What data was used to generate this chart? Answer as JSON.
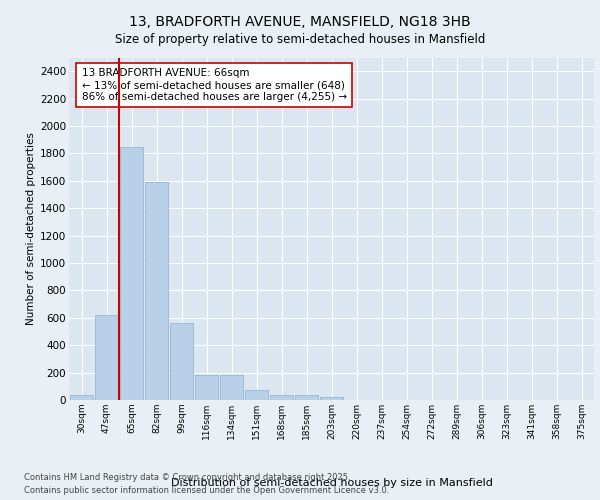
{
  "title1": "13, BRADFORTH AVENUE, MANSFIELD, NG18 3HB",
  "title2": "Size of property relative to semi-detached houses in Mansfield",
  "xlabel": "Distribution of semi-detached houses by size in Mansfield",
  "ylabel": "Number of semi-detached properties",
  "categories": [
    "30sqm",
    "47sqm",
    "65sqm",
    "82sqm",
    "99sqm",
    "116sqm",
    "134sqm",
    "151sqm",
    "168sqm",
    "185sqm",
    "203sqm",
    "220sqm",
    "237sqm",
    "254sqm",
    "272sqm",
    "289sqm",
    "306sqm",
    "323sqm",
    "341sqm",
    "358sqm",
    "375sqm"
  ],
  "values": [
    40,
    620,
    1850,
    1590,
    560,
    185,
    185,
    75,
    40,
    40,
    20,
    0,
    0,
    0,
    0,
    0,
    0,
    0,
    0,
    0,
    0
  ],
  "bar_color": "#b8d0e8",
  "bar_edge_color": "#8ab0d0",
  "highlight_line_color": "#cc0000",
  "highlight_bar_index": 2,
  "annotation_title": "13 BRADFORTH AVENUE: 66sqm",
  "annotation_line1": "← 13% of semi-detached houses are smaller (648)",
  "annotation_line2": "86% of semi-detached houses are larger (4,255) →",
  "annotation_box_color": "#cc0000",
  "ylim": [
    0,
    2500
  ],
  "yticks": [
    0,
    200,
    400,
    600,
    800,
    1000,
    1200,
    1400,
    1600,
    1800,
    2000,
    2200,
    2400
  ],
  "footer1": "Contains HM Land Registry data © Crown copyright and database right 2025.",
  "footer2": "Contains public sector information licensed under the Open Government Licence v3.0.",
  "bg_color": "#eaeff5",
  "plot_bg_color": "#dce6f0",
  "grid_color": "#ffffff",
  "figsize": [
    6.0,
    5.0
  ],
  "dpi": 100
}
